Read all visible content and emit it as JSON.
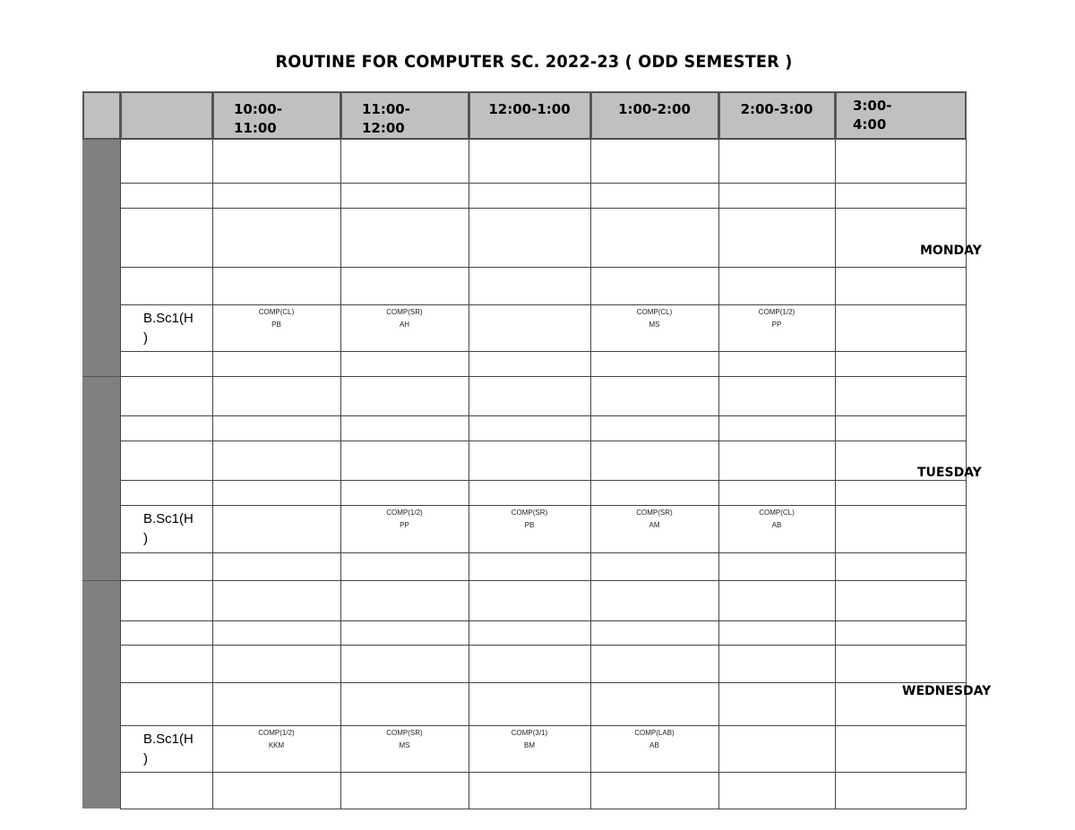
{
  "title": "ROUTINE FOR COMPUTER SC. 2022-23 ( ODD SEMESTER )",
  "time_slots": [
    "10:00-\n11:00",
    "11:00-\n12:00",
    "12:00-1:00",
    "1:00-2:00",
    "2:00-3:00",
    "3:00-4:00"
  ],
  "colors": {
    "header_bg": "#c0c0c0",
    "day_band": "#808080",
    "grid": "#444444"
  },
  "days": [
    {
      "name": "MONDAY",
      "class_label": "B.Sc1(H\n)",
      "entries": [
        {
          "course": "COMP(CL)",
          "teacher": "PB"
        },
        {
          "course": "COMP(SR)",
          "teacher": "AH"
        },
        null,
        {
          "course": "COMP(CL)",
          "teacher": "MS"
        },
        {
          "course": "COMP(1/2)",
          "teacher": "PP"
        },
        null
      ]
    },
    {
      "name": "TUESDAY",
      "class_label": "B.Sc1(H\n)",
      "entries": [
        null,
        {
          "course": "COMP(1/2)",
          "teacher": "PP"
        },
        {
          "course": "COMP(SR)",
          "teacher": "PB"
        },
        {
          "course": "COMP(SR)",
          "teacher": "AM"
        },
        {
          "course": "COMP(CL)",
          "teacher": "AB"
        },
        null
      ]
    },
    {
      "name": "WEDNESDAY",
      "class_label": "B.Sc1(H\n)",
      "entries": [
        {
          "course": "COMP(1/2)",
          "teacher": "KKM"
        },
        {
          "course": "COMP(SR)",
          "teacher": "MS"
        },
        {
          "course": "COMP(3/1)",
          "teacher": "BM"
        },
        {
          "course": "COMP(LAB)",
          "teacher": "AB"
        },
        null,
        null
      ]
    }
  ]
}
